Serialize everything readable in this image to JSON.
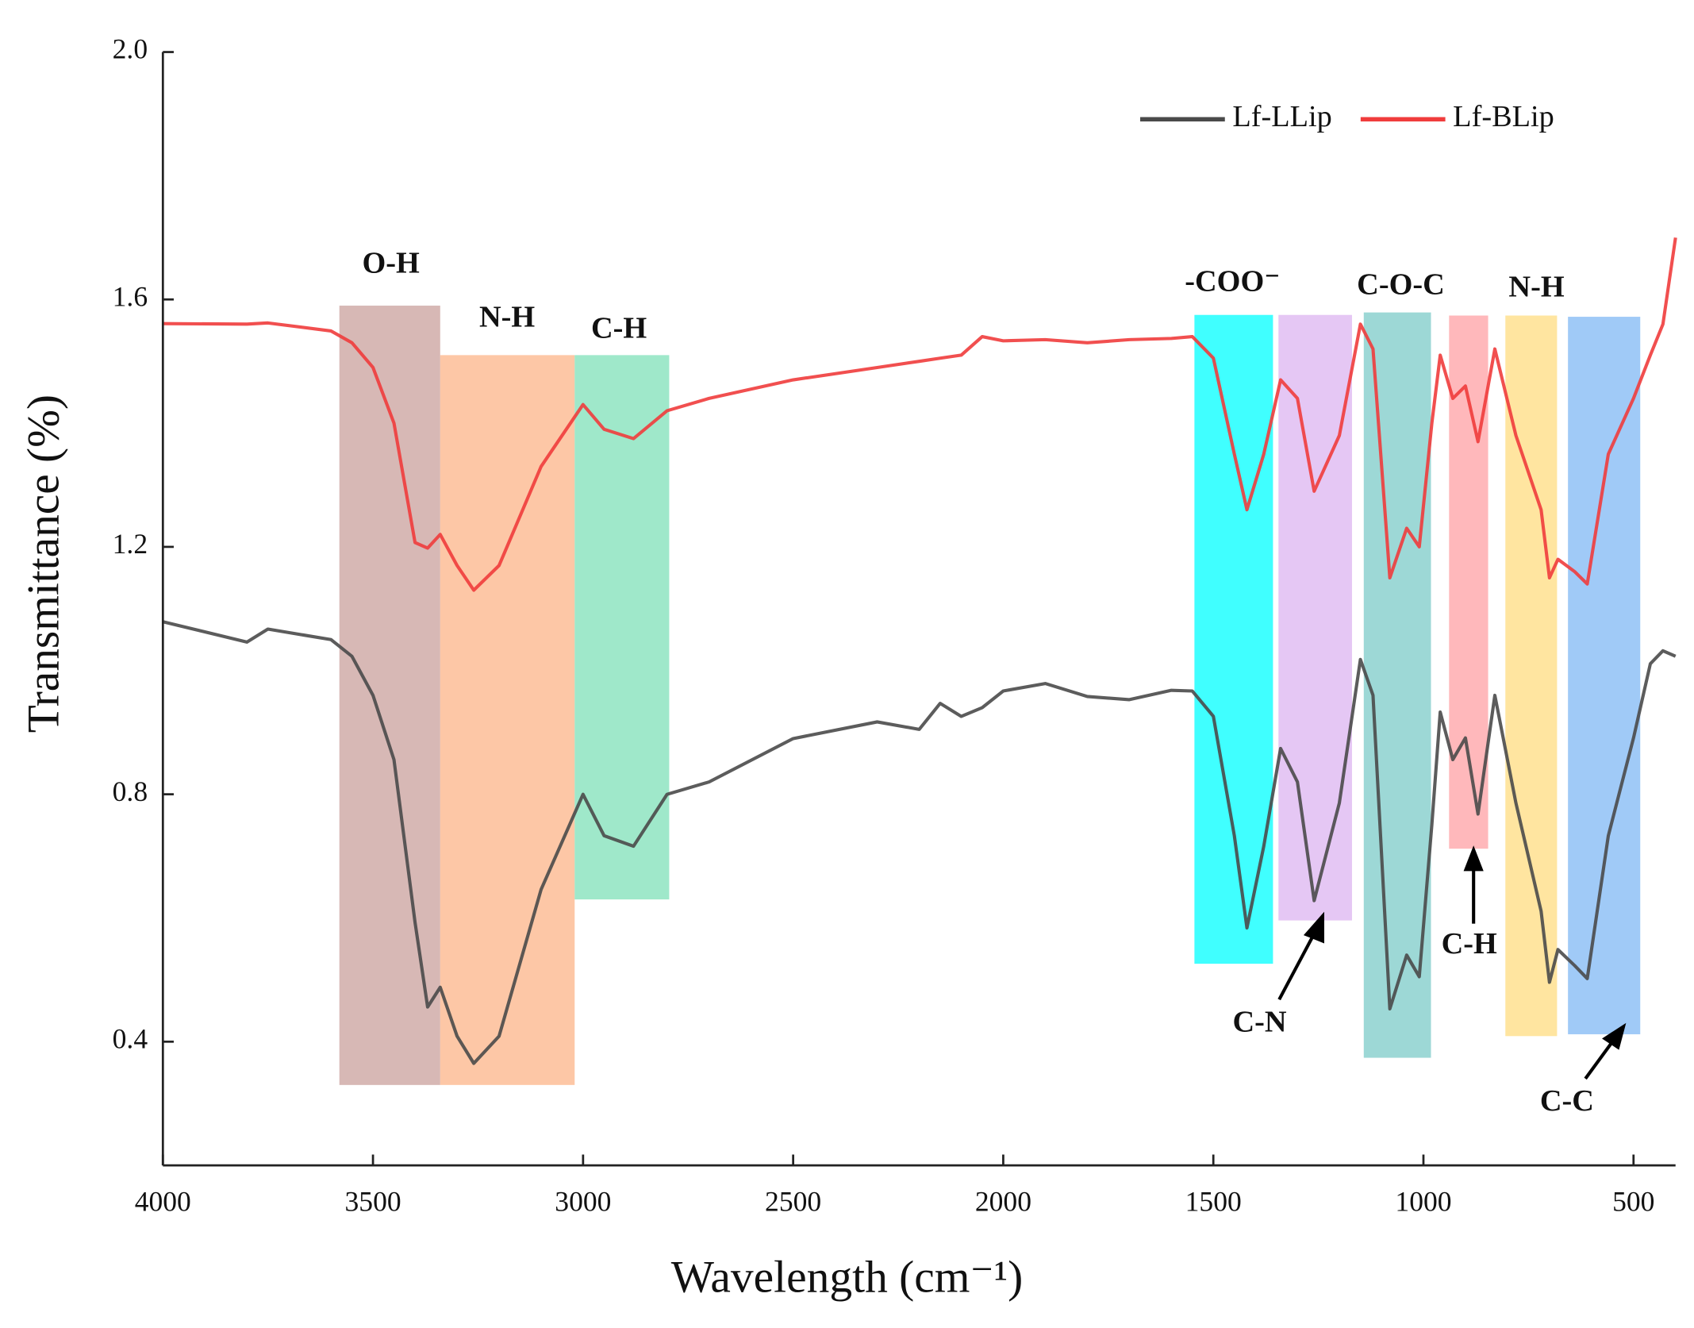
{
  "chart_data": {
    "type": "line",
    "x_label": "Wavelength (cm⁻¹)",
    "y_label": "Transmittance (%)",
    "xlim": [
      4000,
      400
    ],
    "xticks": [
      4000,
      3500,
      3000,
      2500,
      2000,
      1500,
      1000,
      500
    ],
    "ylim": [
      0.2,
      2.0
    ],
    "yticks": [
      0.4,
      0.8,
      1.2,
      1.6,
      {
        "value": 2.0,
        "label": "2.0"
      }
    ],
    "legend": "upper right",
    "x": [
      4000,
      3800,
      3750,
      3600,
      3550,
      3500,
      3450,
      3400,
      3370,
      3340,
      3300,
      3260,
      3200,
      3100,
      3000,
      2950,
      2880,
      2800,
      2700,
      2500,
      2300,
      2200,
      2150,
      2100,
      2050,
      2000,
      1900,
      1800,
      1700,
      1600,
      1550,
      1500,
      1450,
      1420,
      1380,
      1340,
      1300,
      1260,
      1200,
      1150,
      1120,
      1080,
      1040,
      1010,
      980,
      960,
      930,
      900,
      870,
      830,
      780,
      720,
      700,
      680,
      640,
      610,
      560,
      500,
      460,
      430,
      400
    ],
    "series": [
      {
        "name": "Lf-LLip",
        "color": "#4a4a4a",
        "values": [
          1.079,
          1.046,
          1.067,
          1.05,
          1.023,
          0.96,
          0.856,
          0.593,
          0.456,
          0.488,
          0.409,
          0.365,
          0.409,
          0.646,
          0.8,
          0.733,
          0.716,
          0.8,
          0.82,
          0.89,
          0.917,
          0.905,
          0.947,
          0.926,
          0.94,
          0.967,
          0.979,
          0.958,
          0.953,
          0.968,
          0.967,
          0.926,
          0.733,
          0.584,
          0.716,
          0.874,
          0.82,
          0.628,
          0.786,
          1.018,
          0.96,
          0.453,
          0.54,
          0.505,
          0.751,
          0.933,
          0.856,
          0.891,
          0.768,
          0.96,
          0.786,
          0.611,
          0.496,
          0.549,
          0.523,
          0.502,
          0.733,
          0.891,
          1.011,
          1.032,
          1.023
        ]
      },
      {
        "name": "Lf-BLip",
        "color": "#f03c3c",
        "values": [
          1.561,
          1.56,
          1.562,
          1.549,
          1.53,
          1.49,
          1.4,
          1.207,
          1.198,
          1.22,
          1.17,
          1.13,
          1.17,
          1.33,
          1.43,
          1.39,
          1.375,
          1.42,
          1.44,
          1.47,
          1.49,
          1.5,
          1.505,
          1.51,
          1.54,
          1.533,
          1.535,
          1.53,
          1.535,
          1.537,
          1.54,
          1.505,
          1.35,
          1.26,
          1.35,
          1.47,
          1.44,
          1.29,
          1.38,
          1.56,
          1.52,
          1.15,
          1.23,
          1.2,
          1.4,
          1.51,
          1.44,
          1.46,
          1.37,
          1.52,
          1.38,
          1.26,
          1.15,
          1.18,
          1.16,
          1.14,
          1.35,
          1.44,
          1.51,
          1.56,
          1.7
        ]
      }
    ],
    "bands": [
      {
        "x": [
          3580,
          3340
        ],
        "y": [
          0.33,
          1.59
        ],
        "color": "#c9a09c"
      },
      {
        "x": [
          3340,
          3020
        ],
        "y": [
          0.33,
          1.51
        ],
        "color": "#fcb488"
      },
      {
        "x": [
          3020,
          2795
        ],
        "y": [
          0.63,
          1.51
        ],
        "color": "#7fe0b8"
      },
      {
        "x": [
          1545,
          1358
        ],
        "y": [
          0.526,
          1.575
        ],
        "color": "#00ffff"
      },
      {
        "x": [
          1345,
          1170
        ],
        "y": [
          0.596,
          1.575
        ],
        "color": "#dcb4f0"
      },
      {
        "x": [
          1142,
          982
        ],
        "y": [
          0.374,
          1.579
        ],
        "color": "#7ccbc8"
      },
      {
        "x": [
          939,
          846
        ],
        "y": [
          0.712,
          1.574
        ],
        "color": "#ffa0a4"
      },
      {
        "x": [
          805,
          682
        ],
        "y": [
          0.409,
          1.574
        ],
        "color": "#ffdc80"
      },
      {
        "x": [
          656,
          484
        ],
        "y": [
          0.412,
          1.572
        ],
        "color": "#80b8f4"
      }
    ],
    "annotations": [
      "O-H",
      "N-H",
      "C-H",
      "-COO⁻",
      "C-O-C",
      "N-H",
      "C-N",
      "C-H",
      "C-C"
    ]
  }
}
